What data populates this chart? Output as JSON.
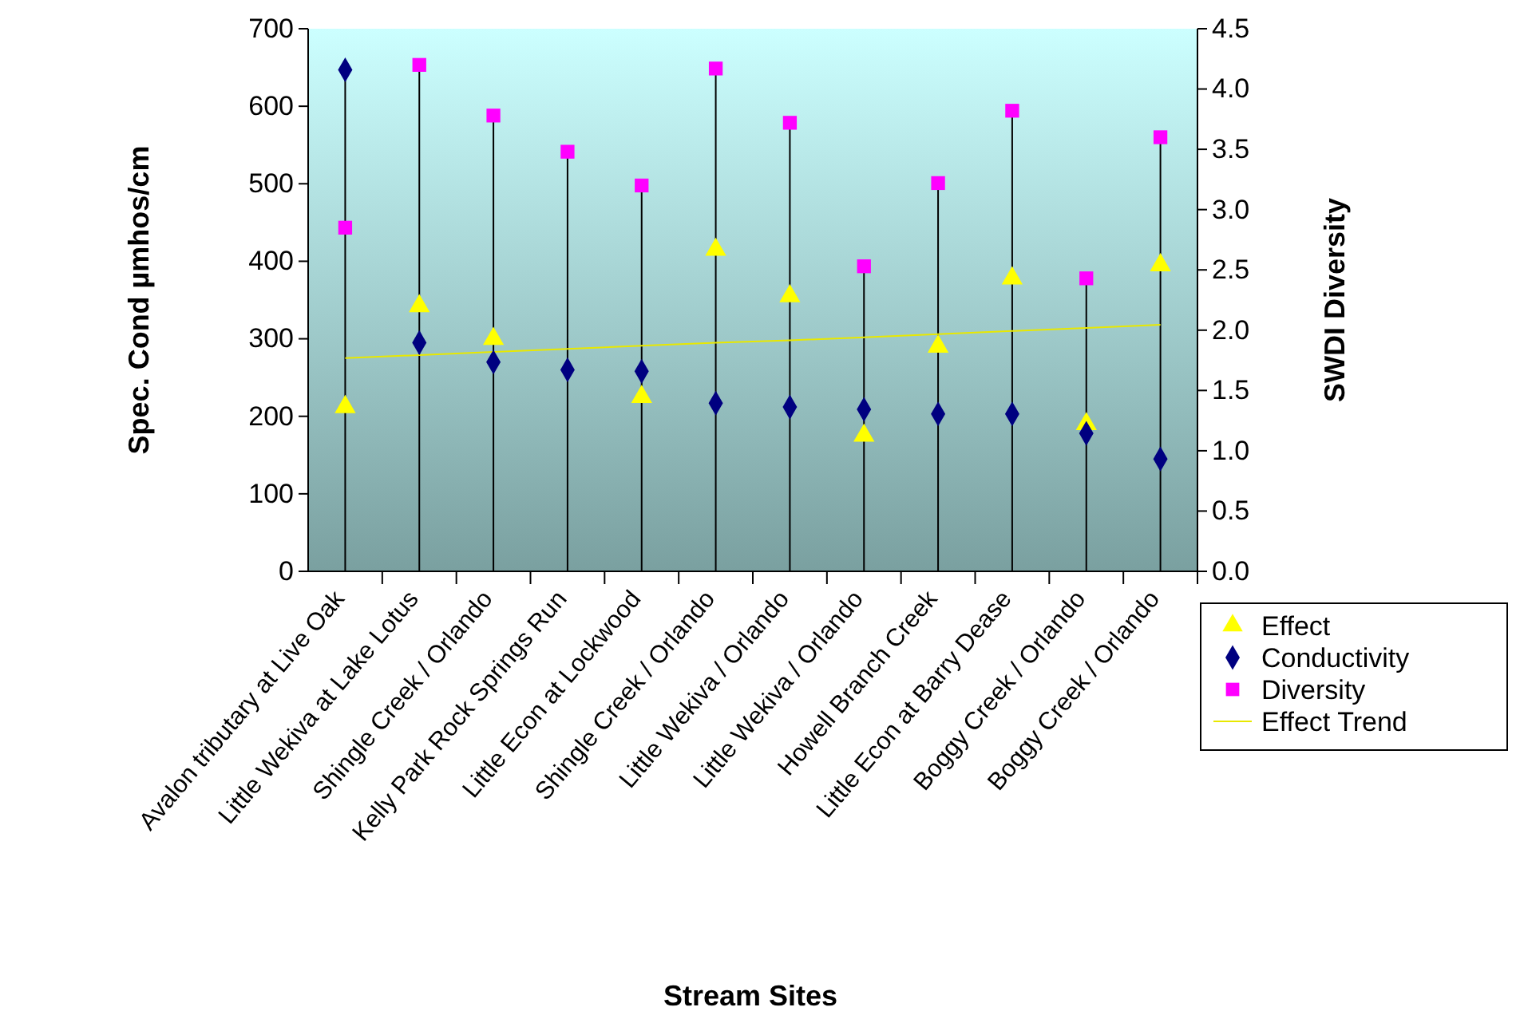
{
  "chart_data": {
    "type": "scatter",
    "xlabel": "Stream Sites",
    "ylabel": "Spec. Cond µmhos/cm",
    "y2label": "SWDI Diversity",
    "categories": [
      "Avalon tributary at Live Oak",
      "Little Wekiva at Lake Lotus",
      "Shingle Creek / Orlando",
      "Kelly Park Rock Springs Run",
      "Little Econ at Lockwood",
      "Shingle Creek / Orlando",
      "Little Wekiva / Orlando",
      "Little Wekiva / Orlando",
      "Howell Branch Creek",
      "Little Econ at Barry Dease",
      "Boggy Creek / Orlando",
      "Boggy Creek / Orlando"
    ],
    "ylim": [
      0,
      700
    ],
    "yticks": [
      0,
      100,
      200,
      300,
      400,
      500,
      600,
      700
    ],
    "y2lim": [
      0,
      4.5
    ],
    "y2ticks": [
      {
        "value": 0,
        "label": "0.0"
      },
      {
        "value": 0.5,
        "label": "0.5"
      },
      {
        "value": 1,
        "label": "1.0"
      },
      {
        "value": 1.5,
        "label": "1.5"
      },
      {
        "value": 2,
        "label": "2.0"
      },
      {
        "value": 2.5,
        "label": "2.5"
      },
      {
        "value": 3,
        "label": "3.0"
      },
      {
        "value": 3.5,
        "label": "3.5"
      },
      {
        "value": 4,
        "label": "4.0"
      },
      {
        "value": 4.5,
        "label": "4.5"
      }
    ],
    "grid": "x",
    "legend": "bottom right",
    "series": [
      {
        "name": "Effect",
        "marker": "triangle",
        "color": "#ffff00",
        "values": [
          212,
          342,
          300,
          null,
          225,
          415,
          355,
          175,
          290,
          378,
          190,
          395
        ]
      },
      {
        "name": "Conductivity",
        "marker": "diamond",
        "color": "#000080",
        "values": [
          647,
          295,
          270,
          260,
          258,
          217,
          212,
          209,
          203,
          203,
          178,
          145
        ]
      },
      {
        "name": "Diversity",
        "marker": "square",
        "color": "#ff00ff",
        "axis": "y2",
        "values": [
          2.85,
          4.2,
          3.78,
          3.48,
          3.2,
          4.17,
          3.72,
          2.53,
          3.22,
          3.82,
          2.43,
          3.6
        ]
      },
      {
        "name": "Effect Trend",
        "type": "line",
        "color": "#e8e800",
        "values": [
          275,
          279,
          283,
          287,
          291,
          295,
          298,
          302,
          306,
          310,
          314,
          318
        ]
      }
    ]
  }
}
